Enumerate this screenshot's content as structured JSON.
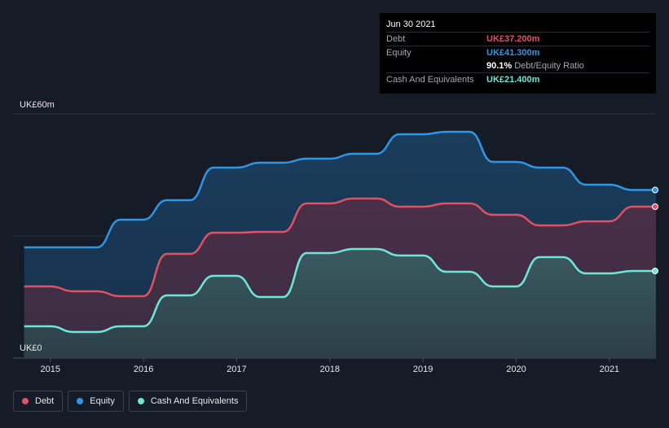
{
  "tooltip": {
    "date": "Jun 30 2021",
    "rows": [
      {
        "label": "Debt",
        "value": "UK£37.200m",
        "color": "#e05263"
      },
      {
        "label": "Equity",
        "value": "UK£41.300m",
        "color": "#2f96e6"
      },
      {
        "ratio_value": "90.1%",
        "ratio_label": "Debt/Equity Ratio"
      },
      {
        "label": "Cash And Equivalents",
        "value": "UK£21.400m",
        "color": "#6ee7d8"
      }
    ]
  },
  "legend": [
    {
      "label": "Debt",
      "color": "#e05263"
    },
    {
      "label": "Equity",
      "color": "#2f96e6"
    },
    {
      "label": "Cash And Equivalents",
      "color": "#6ee7d8"
    }
  ],
  "chart_data": {
    "type": "area",
    "ytop_label": "UK£60m",
    "ybottom_label": "UK£0",
    "ylim": [
      0,
      60
    ],
    "xlim": [
      2014.6,
      2021.5
    ],
    "x_ticks": [
      "2015",
      "2016",
      "2017",
      "2018",
      "2019",
      "2020",
      "2021"
    ],
    "series": [
      {
        "name": "Equity",
        "color": "#2f96e6",
        "points": [
          [
            2014.72,
            27.2
          ],
          [
            2015.0,
            27.2
          ],
          [
            2015.25,
            27.2
          ],
          [
            2015.5,
            27.2
          ],
          [
            2015.75,
            34.0
          ],
          [
            2016.0,
            34.0
          ],
          [
            2016.25,
            38.8
          ],
          [
            2016.5,
            38.8
          ],
          [
            2016.75,
            46.8
          ],
          [
            2017.0,
            46.8
          ],
          [
            2017.25,
            48.0
          ],
          [
            2017.5,
            48.0
          ],
          [
            2017.75,
            49.0
          ],
          [
            2018.0,
            49.0
          ],
          [
            2018.25,
            50.2
          ],
          [
            2018.5,
            50.2
          ],
          [
            2018.75,
            55.0
          ],
          [
            2019.0,
            55.0
          ],
          [
            2019.25,
            55.6
          ],
          [
            2019.5,
            55.6
          ],
          [
            2019.75,
            48.2
          ],
          [
            2020.0,
            48.2
          ],
          [
            2020.25,
            46.8
          ],
          [
            2020.5,
            46.8
          ],
          [
            2020.75,
            42.6
          ],
          [
            2021.0,
            42.6
          ],
          [
            2021.25,
            41.3
          ],
          [
            2021.5,
            41.3
          ]
        ]
      },
      {
        "name": "Debt",
        "color": "#e05263",
        "points": [
          [
            2014.72,
            17.6
          ],
          [
            2015.0,
            17.6
          ],
          [
            2015.25,
            16.4
          ],
          [
            2015.5,
            16.4
          ],
          [
            2015.75,
            15.2
          ],
          [
            2016.0,
            15.2
          ],
          [
            2016.25,
            25.6
          ],
          [
            2016.5,
            25.6
          ],
          [
            2016.75,
            30.8
          ],
          [
            2017.0,
            30.8
          ],
          [
            2017.25,
            31.0
          ],
          [
            2017.5,
            31.0
          ],
          [
            2017.75,
            38.0
          ],
          [
            2018.0,
            38.0
          ],
          [
            2018.25,
            39.2
          ],
          [
            2018.5,
            39.2
          ],
          [
            2018.75,
            37.2
          ],
          [
            2019.0,
            37.2
          ],
          [
            2019.25,
            38.0
          ],
          [
            2019.5,
            38.0
          ],
          [
            2019.75,
            35.2
          ],
          [
            2020.0,
            35.2
          ],
          [
            2020.25,
            32.6
          ],
          [
            2020.5,
            32.6
          ],
          [
            2020.75,
            33.6
          ],
          [
            2021.0,
            33.6
          ],
          [
            2021.25,
            37.2
          ],
          [
            2021.5,
            37.2
          ]
        ]
      },
      {
        "name": "Cash And Equivalents",
        "color": "#6ee7d8",
        "points": [
          [
            2014.72,
            7.8
          ],
          [
            2015.0,
            7.8
          ],
          [
            2015.25,
            6.4
          ],
          [
            2015.5,
            6.4
          ],
          [
            2015.75,
            7.8
          ],
          [
            2016.0,
            7.8
          ],
          [
            2016.25,
            15.4
          ],
          [
            2016.5,
            15.4
          ],
          [
            2016.75,
            20.2
          ],
          [
            2017.0,
            20.2
          ],
          [
            2017.25,
            15.0
          ],
          [
            2017.5,
            15.0
          ],
          [
            2017.75,
            25.8
          ],
          [
            2018.0,
            25.8
          ],
          [
            2018.25,
            26.8
          ],
          [
            2018.5,
            26.8
          ],
          [
            2018.75,
            25.2
          ],
          [
            2019.0,
            25.2
          ],
          [
            2019.25,
            21.2
          ],
          [
            2019.5,
            21.2
          ],
          [
            2019.75,
            17.6
          ],
          [
            2020.0,
            17.6
          ],
          [
            2020.25,
            24.8
          ],
          [
            2020.5,
            24.8
          ],
          [
            2020.75,
            20.8
          ],
          [
            2021.0,
            20.8
          ],
          [
            2021.25,
            21.4
          ],
          [
            2021.5,
            21.4
          ]
        ]
      }
    ]
  }
}
